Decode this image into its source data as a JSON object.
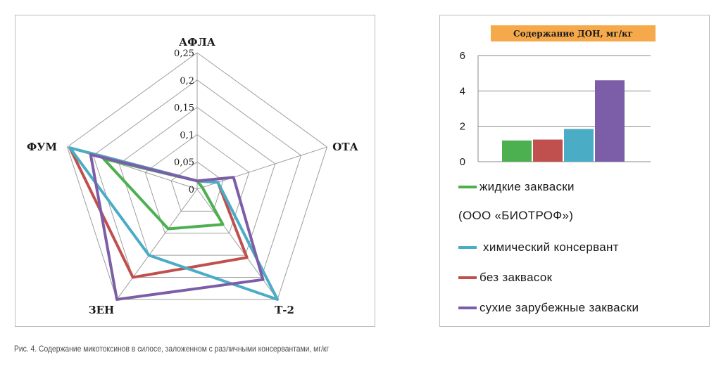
{
  "caption": "Рис. 4. Содержание микотоксинов в силосе, заложенном с различными консервантами, мг/кг",
  "chart_data": [
    {
      "type": "radar",
      "axes": [
        "АФЛА",
        "ОТА",
        "Т-2",
        "ЗЕН",
        "ФУМ"
      ],
      "ticks": [
        "0",
        "0,05",
        "0,1",
        "0,15",
        "0,2",
        "0,25"
      ],
      "range": [
        0,
        0.25
      ],
      "grid": true,
      "series": [
        {
          "color": "#4caf50",
          "values": [
            0.015,
            0.01,
            0.08,
            0.09,
            0.18
          ]
        },
        {
          "color": "#c0504d",
          "values": [
            0.015,
            0.04,
            0.155,
            0.2,
            0.245
          ]
        },
        {
          "color": "#4bacc6",
          "values": [
            0.015,
            0.04,
            0.25,
            0.15,
            0.245
          ]
        },
        {
          "color": "#7b5ea7",
          "values": [
            0.015,
            0.07,
            0.205,
            0.25,
            0.205
          ]
        }
      ]
    },
    {
      "type": "bar",
      "title": "Содержание  ДОН, мг/кг",
      "categories": [
        "жидкие закваски",
        "без заквасок",
        "химический консервант",
        "сухие зарубежные закваски"
      ],
      "values": [
        1.2,
        1.25,
        1.85,
        4.6
      ],
      "colors": [
        "#4caf50",
        "#c0504d",
        "#4bacc6",
        "#7b5ea7"
      ],
      "ylim": [
        0,
        6
      ],
      "yticks": [
        "0",
        "2",
        "4",
        "6"
      ],
      "grid": true,
      "legend": [
        {
          "label": "жидкие закваски",
          "color": "#4caf50"
        },
        {
          "label": "(ООО «БИОТРОФ»)",
          "color": ""
        },
        {
          "label": " химический консервант",
          "color": "#4bacc6"
        },
        {
          "label": "без заквасок",
          "color": "#c0504d"
        },
        {
          "label": "сухие зарубежные закваски",
          "color": "#7b5ea7"
        }
      ]
    }
  ]
}
